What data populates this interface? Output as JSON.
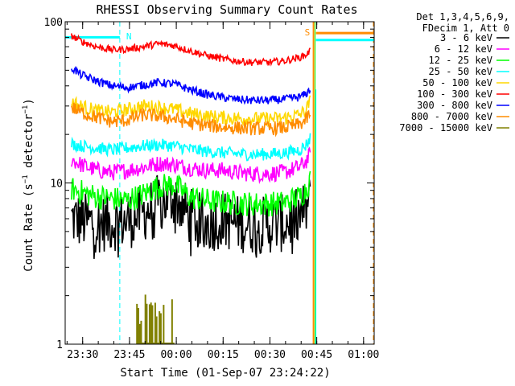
{
  "chart_data": {
    "type": "line",
    "title": "RHESSI Observing Summary Count Rates",
    "xlabel": "Start Time (01-Sep-07 23:24:22)",
    "ylabel": "Count Rate (s⁻¹ detector⁻¹)",
    "ylabel_main": "Count Rate (s",
    "ylabel_sup1": "−1",
    "ylabel_mid": " detector",
    "ylabel_sup2": "−1",
    "ylabel_end": ")",
    "yscale": "log",
    "ylim": [
      1,
      100
    ],
    "yticks": [
      {
        "value": 1,
        "label": "1"
      },
      {
        "value": 10,
        "label": "10"
      },
      {
        "value": 100,
        "label": "100"
      }
    ],
    "xlim_minutes": [
      0,
      99
    ],
    "xticks": [
      {
        "t": 5.6,
        "label": "23:30"
      },
      {
        "t": 20.6,
        "label": "23:45"
      },
      {
        "t": 35.6,
        "label": "00:00"
      },
      {
        "t": 50.6,
        "label": "00:15"
      },
      {
        "t": 65.6,
        "label": "00:30"
      },
      {
        "t": 80.6,
        "label": "00:45"
      },
      {
        "t": 95.6,
        "label": "01:00"
      }
    ],
    "legend_header": [
      "Det 1,3,4,5,6,9,",
      "FDecim 1, Att 0"
    ],
    "legend_position": "top-right",
    "markers": [
      {
        "label": "N",
        "t": 17.5,
        "color": "#00ffff"
      },
      {
        "label": "S",
        "t": 79.3,
        "color": "#ff8c00"
      }
    ],
    "series": [
      {
        "name": "3 - 6 keV",
        "color": "#000000",
        "points": [
          [
            2,
            6.0
          ],
          [
            10,
            5.6
          ],
          [
            20,
            5.8
          ],
          [
            25,
            6.5
          ],
          [
            30,
            7.5
          ],
          [
            35,
            8.2
          ],
          [
            40,
            6.2
          ],
          [
            45,
            5.5
          ],
          [
            50,
            5.9
          ],
          [
            55,
            5.6
          ],
          [
            60,
            5.5
          ],
          [
            65,
            5.5
          ],
          [
            70,
            5.6
          ],
          [
            75,
            6.2
          ],
          [
            77,
            6.8
          ],
          [
            78.5,
            7.5
          ]
        ]
      },
      {
        "name": "6 - 12 keV",
        "color": "#ff00ff",
        "points": [
          [
            2,
            14.0
          ],
          [
            5,
            13.0
          ],
          [
            10,
            12.0
          ],
          [
            15,
            11.6
          ],
          [
            20,
            12.0
          ],
          [
            25,
            12.5
          ],
          [
            30,
            13.2
          ],
          [
            35,
            13.0
          ],
          [
            40,
            12.4
          ],
          [
            45,
            12.0
          ],
          [
            50,
            12.0
          ],
          [
            55,
            11.6
          ],
          [
            60,
            11.4
          ],
          [
            65,
            11.4
          ],
          [
            70,
            11.6
          ],
          [
            75,
            12.5
          ],
          [
            77,
            13.5
          ],
          [
            78.5,
            15.0
          ]
        ]
      },
      {
        "name": "12 - 25 keV",
        "color": "#00ff00",
        "points": [
          [
            2,
            9.2
          ],
          [
            10,
            8.2
          ],
          [
            20,
            7.8
          ],
          [
            25,
            8.5
          ],
          [
            30,
            9.5
          ],
          [
            35,
            9.8
          ],
          [
            40,
            8.2
          ],
          [
            45,
            7.8
          ],
          [
            50,
            7.6
          ],
          [
            55,
            7.5
          ],
          [
            60,
            7.4
          ],
          [
            65,
            7.4
          ],
          [
            70,
            7.5
          ],
          [
            75,
            8.2
          ],
          [
            77,
            9.0
          ],
          [
            78.5,
            10.5
          ]
        ]
      },
      {
        "name": "25 - 50 keV",
        "color": "#00ffff",
        "points": [
          [
            2,
            17.5
          ],
          [
            5,
            17.0
          ],
          [
            10,
            16.5
          ],
          [
            15,
            16.0
          ],
          [
            20,
            16.5
          ],
          [
            25,
            17.0
          ],
          [
            30,
            17.2
          ],
          [
            35,
            17.0
          ],
          [
            40,
            16.2
          ],
          [
            45,
            15.7
          ],
          [
            50,
            15.4
          ],
          [
            55,
            15.2
          ],
          [
            60,
            15.0
          ],
          [
            65,
            15.1
          ],
          [
            70,
            15.3
          ],
          [
            75,
            16.0
          ],
          [
            77,
            17.0
          ],
          [
            78.5,
            19.0
          ]
        ]
      },
      {
        "name": "50 - 100 keV",
        "color": "#ffd700",
        "points": [
          [
            2,
            32.0
          ],
          [
            5,
            30.0
          ],
          [
            10,
            28.0
          ],
          [
            15,
            27.5
          ],
          [
            20,
            28.5
          ],
          [
            25,
            30.0
          ],
          [
            30,
            29.5
          ],
          [
            35,
            28.5
          ],
          [
            40,
            27.0
          ],
          [
            45,
            26.0
          ],
          [
            50,
            25.5
          ],
          [
            55,
            25.2
          ],
          [
            60,
            25.0
          ],
          [
            65,
            25.0
          ],
          [
            70,
            25.2
          ],
          [
            75,
            26.5
          ],
          [
            77,
            28.0
          ],
          [
            78.5,
            32.0
          ]
        ]
      },
      {
        "name": "100 - 300 keV",
        "color": "#ff0000",
        "points": [
          [
            2,
            82.0
          ],
          [
            5,
            76.0
          ],
          [
            10,
            70.0
          ],
          [
            15,
            67.0
          ],
          [
            20,
            67.5
          ],
          [
            25,
            70.0
          ],
          [
            30,
            73.0
          ],
          [
            35,
            71.0
          ],
          [
            40,
            66.0
          ],
          [
            45,
            62.0
          ],
          [
            50,
            59.0
          ],
          [
            55,
            57.0
          ],
          [
            60,
            56.0
          ],
          [
            65,
            56.0
          ],
          [
            70,
            57.0
          ],
          [
            75,
            60.0
          ],
          [
            77,
            62.0
          ],
          [
            78.5,
            66.0
          ]
        ]
      },
      {
        "name": "300 - 800 keV",
        "color": "#0000ff",
        "points": [
          [
            2,
            52.0
          ],
          [
            5,
            47.0
          ],
          [
            10,
            43.0
          ],
          [
            15,
            40.0
          ],
          [
            20,
            39.0
          ],
          [
            25,
            40.5
          ],
          [
            30,
            42.0
          ],
          [
            35,
            41.0
          ],
          [
            40,
            38.0
          ],
          [
            45,
            35.5
          ],
          [
            50,
            34.0
          ],
          [
            55,
            33.0
          ],
          [
            60,
            32.5
          ],
          [
            65,
            32.5
          ],
          [
            70,
            33.0
          ],
          [
            75,
            34.0
          ],
          [
            77,
            35.5
          ],
          [
            78.5,
            38.0
          ]
        ]
      },
      {
        "name": "800 - 7000 keV",
        "color": "#ff8c00",
        "points": [
          [
            2,
            29.5
          ],
          [
            5,
            27.5
          ],
          [
            10,
            25.5
          ],
          [
            15,
            24.0
          ],
          [
            20,
            24.5
          ],
          [
            25,
            26.5
          ],
          [
            30,
            26.0
          ],
          [
            35,
            25.0
          ],
          [
            40,
            23.5
          ],
          [
            45,
            22.8
          ],
          [
            50,
            22.2
          ],
          [
            55,
            22.0
          ],
          [
            60,
            21.8
          ],
          [
            65,
            21.8
          ],
          [
            70,
            22.0
          ],
          [
            75,
            23.0
          ],
          [
            77,
            24.5
          ],
          [
            78.5,
            27.0
          ]
        ]
      },
      {
        "name": "7000 - 15000 keV",
        "color": "#808000",
        "points": [
          [
            24,
            1.0
          ],
          [
            26,
            1.0
          ],
          [
            28,
            1.0
          ],
          [
            30,
            1.0
          ],
          [
            32,
            1.0
          ],
          [
            34,
            1.0
          ]
        ]
      }
    ]
  }
}
